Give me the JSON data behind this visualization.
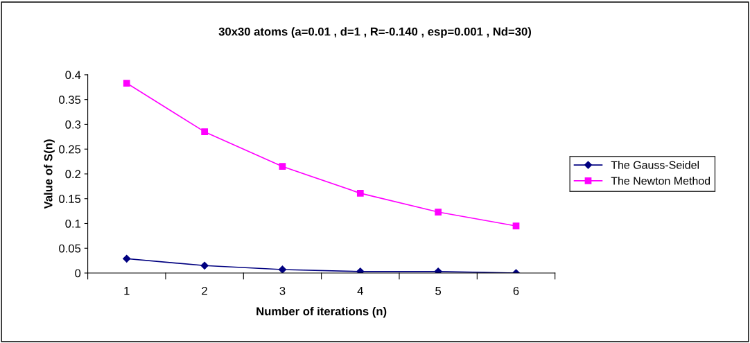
{
  "chart_data": {
    "type": "line",
    "title": "30x30 atoms (a=0.01 , d=1 , R=-0.140 , esp=0.001 , Nd=30)",
    "xlabel": "Number of iterations (n)",
    "ylabel": "Value of S(n)",
    "categories": [
      "1",
      "2",
      "3",
      "4",
      "5",
      "6"
    ],
    "series": [
      {
        "name": "The Gauss-Seidel",
        "color": "#000080",
        "marker": "diamond",
        "values": [
          0.029,
          0.015,
          0.007,
          0.003,
          0.003,
          0.0
        ]
      },
      {
        "name": "The Newton Method",
        "color": "#ff00ff",
        "marker": "square",
        "values": [
          0.383,
          0.285,
          0.215,
          0.161,
          0.123,
          0.095
        ]
      }
    ],
    "ylim": [
      0,
      0.4
    ],
    "yticks": [
      0,
      0.05,
      0.1,
      0.15,
      0.2,
      0.25,
      0.3,
      0.35,
      0.4
    ],
    "grid": false,
    "legend": "right",
    "line_style": "solid"
  }
}
